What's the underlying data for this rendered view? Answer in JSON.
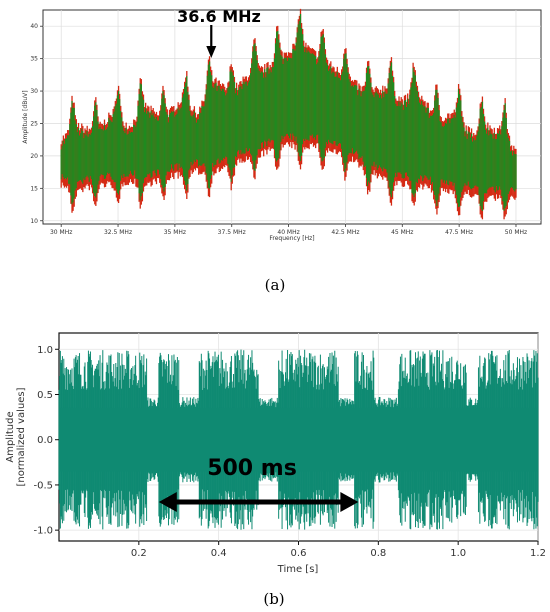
{
  "chart_data": [
    {
      "type": "area",
      "panel_caption": "(a)",
      "annotation": "36.6 MHz",
      "annotation_x_mhz": 36.6,
      "xlabel": "Frequency [Hz]",
      "ylabel": "Amplitude [dBuV]",
      "xlim": [
        29.2,
        51.1
      ],
      "ylim": [
        9.5,
        42.5
      ],
      "xticks": [
        {
          "value": 30,
          "label": "30 MHz"
        },
        {
          "value": 32.5,
          "label": "32.5 MHz"
        },
        {
          "value": 35,
          "label": "35 MHz"
        },
        {
          "value": 37.5,
          "label": "37.5 MHz"
        },
        {
          "value": 40,
          "label": "40 MHz"
        },
        {
          "value": 42.5,
          "label": "42.5 MHz"
        },
        {
          "value": 45,
          "label": "45 MHz"
        },
        {
          "value": 47.5,
          "label": "47.5 MHz"
        },
        {
          "value": 50,
          "label": "50 MHz"
        }
      ],
      "yticks": [
        10,
        15,
        20,
        25,
        30,
        35,
        40
      ],
      "grid": true,
      "colors": {
        "series_main": "#1f8a1f",
        "series_under": "#d42a14"
      },
      "series": [
        {
          "x": [
            30.0,
            30.75,
            31.5,
            32.25,
            33.0,
            33.75,
            34.5,
            35.25,
            36.0,
            36.75,
            37.5,
            38.25,
            39.0,
            39.75,
            40.5,
            41.25,
            42.0,
            42.75,
            43.5,
            44.25,
            45.0,
            45.75,
            46.5,
            47.25,
            48.0,
            48.75,
            49.5,
            50.0
          ],
          "upper": [
            26,
            28,
            27,
            30,
            28,
            31,
            29,
            32,
            30,
            35,
            33,
            36,
            37,
            39,
            41,
            39,
            37,
            35,
            33,
            34,
            32,
            33,
            29,
            30,
            27,
            28,
            27,
            24
          ],
          "lower": [
            14,
            13,
            14,
            14,
            14.5,
            14,
            15,
            15.5,
            16,
            16,
            17,
            18,
            19,
            20,
            20,
            20,
            19,
            18,
            16,
            15,
            14,
            14,
            13,
            13,
            12.5,
            12,
            12,
            12
          ]
        }
      ]
    },
    {
      "type": "line",
      "panel_caption": "(b)",
      "annotation": "500 ms",
      "annotation_span": [
        0.25,
        0.75
      ],
      "xlabel": "Time [s]",
      "ylabel": "Amplitude",
      "ylabel2": "[normalized values]",
      "xlim": [
        0.0,
        1.2
      ],
      "ylim": [
        -1.12,
        1.18
      ],
      "xticks": [
        0.2,
        0.4,
        0.6,
        0.8,
        1.0,
        1.2
      ],
      "yticks": [
        -1.0,
        -0.5,
        0.0,
        0.5,
        1.0
      ],
      "grid": true,
      "colors": {
        "signal": "#0f8a72"
      },
      "series": [
        {
          "burst_segments": [
            [
              0.0,
              0.22
            ],
            [
              0.25,
              0.3
            ],
            [
              0.35,
              0.5
            ],
            [
              0.55,
              0.7
            ],
            [
              0.74,
              0.79
            ],
            [
              0.85,
              1.02
            ],
            [
              1.05,
              1.2
            ]
          ],
          "burst_peak": 1.0,
          "quiet_level": 0.45
        }
      ]
    }
  ]
}
